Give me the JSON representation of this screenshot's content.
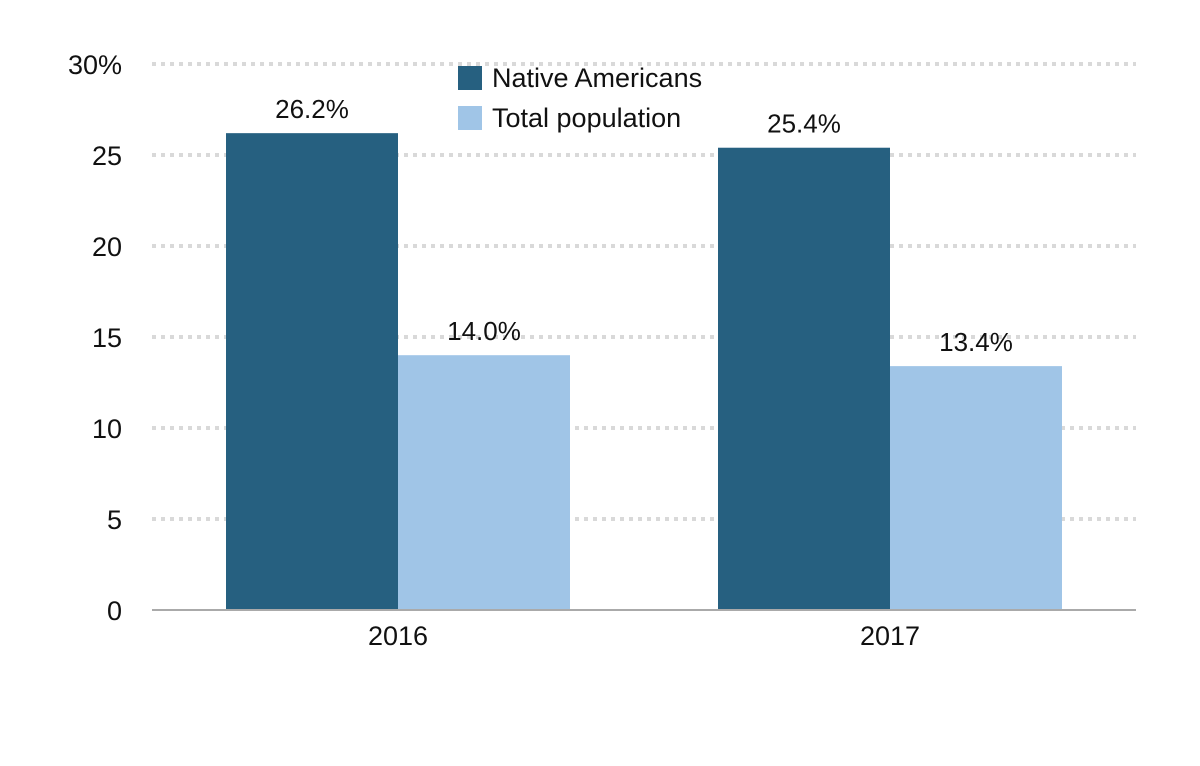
{
  "chart_data": {
    "type": "bar",
    "title": "",
    "xlabel": "",
    "ylabel": "",
    "categories": [
      "2016",
      "2017"
    ],
    "series": [
      {
        "name": "Native Americans",
        "values": [
          26.2,
          25.4
        ],
        "labels": [
          "26.2%",
          "25.4%"
        ],
        "color": "#266080"
      },
      {
        "name": "Total population",
        "values": [
          14.0,
          13.4
        ],
        "labels": [
          "14.0%",
          "13.4%"
        ],
        "color": "#a0c5e7"
      }
    ],
    "ylim": [
      0,
      30
    ],
    "yticks": [
      0,
      5,
      10,
      15,
      20,
      25,
      30
    ],
    "ytick_labels": [
      "0",
      "5",
      "10",
      "15",
      "20",
      "25",
      "30%"
    ],
    "grid": true,
    "legend_position": "top-center"
  }
}
